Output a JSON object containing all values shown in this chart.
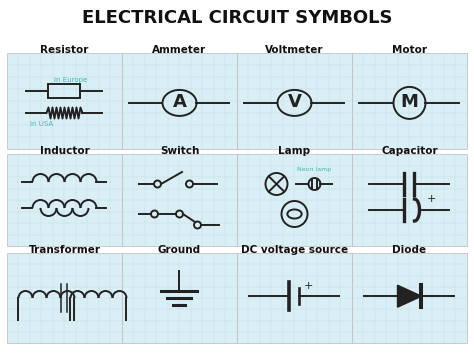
{
  "title": "ELECTRICAL CIRCUIT SYMBOLS",
  "title_fontsize": 13,
  "title_fontweight": "bold",
  "background_color": "#ffffff",
  "grid_color": "#c5e0e8",
  "cell_bg": "#daeef5",
  "cell_edge": "#bbbbbb",
  "symbol_color": "#222222",
  "label_color": "#111111",
  "teal_color": "#3abcb0",
  "label_fontsize": 7.5,
  "label_fontweight": "bold",
  "small_label_fontsize": 5,
  "rows": [
    [
      "Resistor",
      "Ammeter",
      "Voltmeter",
      "Motor"
    ],
    [
      "Inductor",
      "Switch",
      "Lamp",
      "Capacitor"
    ],
    [
      "Transformer",
      "Ground",
      "DC voltage source",
      "Diode"
    ]
  ],
  "figsize": [
    4.74,
    3.61
  ],
  "dpi": 100
}
